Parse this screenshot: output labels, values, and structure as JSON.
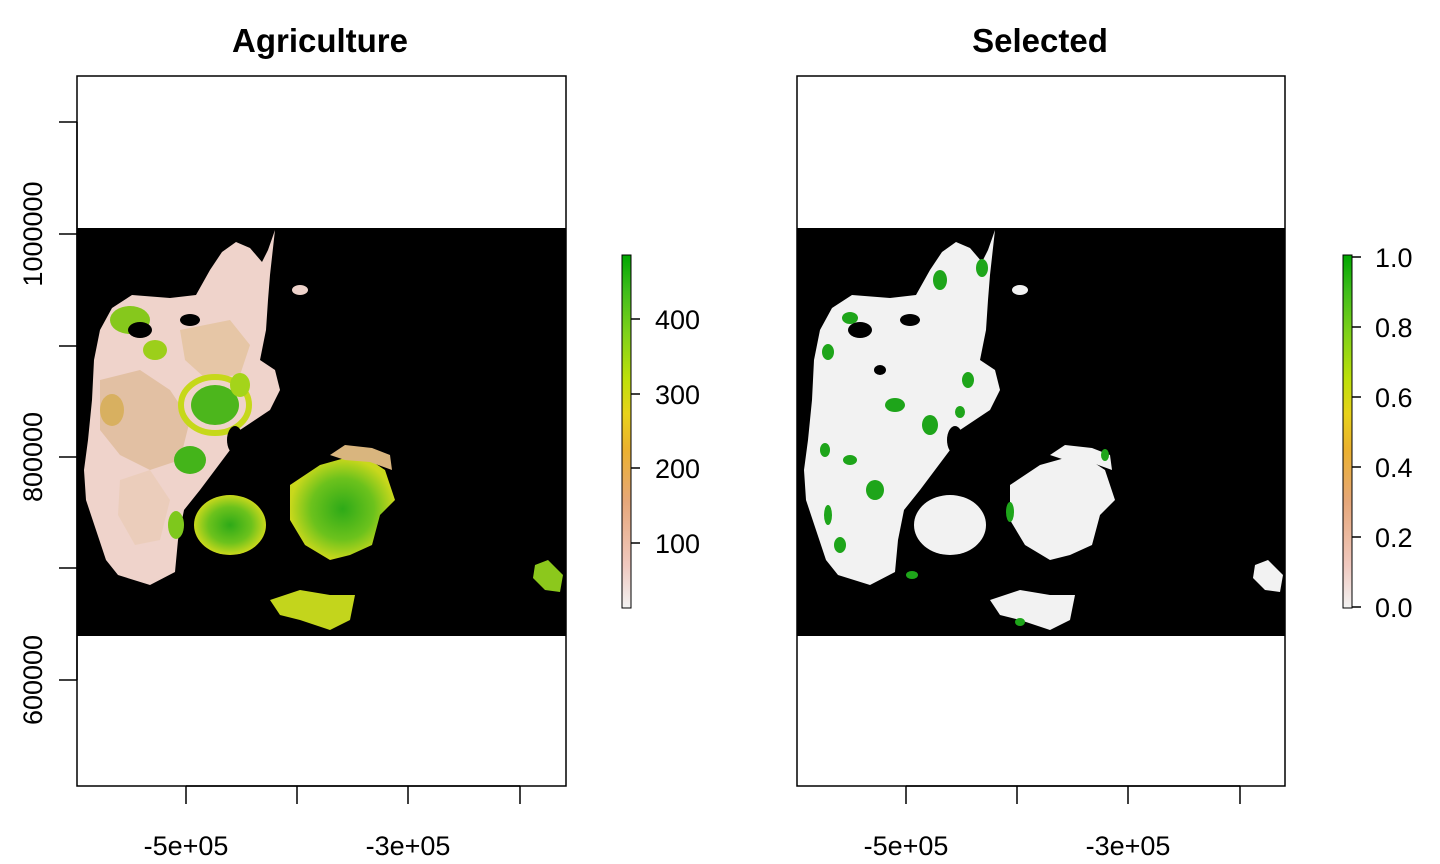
{
  "panels": [
    {
      "title": "Agriculture",
      "x_tick_labels": [
        "-5e+05",
        "-3e+05"
      ],
      "y_tick_labels": [
        "1000000",
        "800000",
        "600000"
      ],
      "legend": {
        "labels": [
          "400",
          "300",
          "200",
          "100"
        ],
        "range": [
          20,
          480
        ],
        "colors": [
          "#f2f2f2",
          "#f0c9c0",
          "#e6a77a",
          "#ebb12e",
          "#e8d21a",
          "#bde00a",
          "#7ed11a",
          "#3ebd1b",
          "#00a600"
        ]
      }
    },
    {
      "title": "Selected",
      "x_tick_labels": [
        "-5e+05",
        "-3e+05"
      ],
      "legend": {
        "labels": [
          "1.0",
          "0.8",
          "0.6",
          "0.4",
          "0.2",
          "0.0"
        ],
        "range": [
          0,
          1
        ],
        "colors": [
          "#f2f2f2",
          "#f0c9c0",
          "#e6a77a",
          "#ebb12e",
          "#e8d21a",
          "#bde00a",
          "#7ed11a",
          "#3ebd1b",
          "#00a600"
        ]
      }
    }
  ],
  "colors": {
    "background_raster": "#000000",
    "land_low": "#f0d4cc",
    "land_mid": "#dcb48a",
    "land_high_green": "#37b21c",
    "land_yellow": "#c8d81a",
    "selected_land": "#f2f2f2",
    "selected_green": "#1ea51a"
  }
}
